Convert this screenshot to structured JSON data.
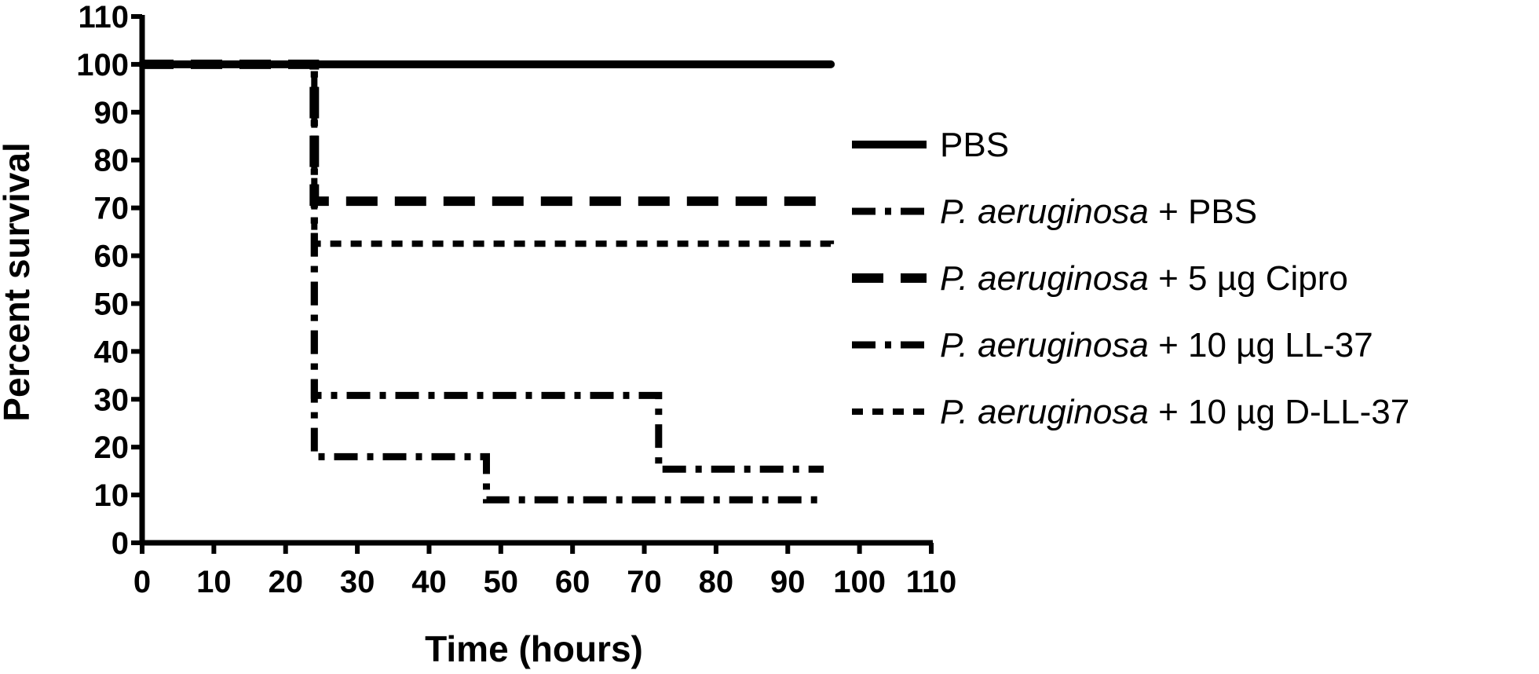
{
  "chart_data": {
    "type": "line",
    "subtype": "kaplan-meier",
    "title": "",
    "xlabel": "Time (hours)",
    "ylabel": "Percent survival",
    "xlim": [
      0,
      110
    ],
    "ylim": [
      0,
      110
    ],
    "xticks": [
      "0",
      "10",
      "20",
      "30",
      "40",
      "50",
      "60",
      "70",
      "80",
      "90",
      "100",
      "110"
    ],
    "yticks": [
      "0",
      "10",
      "20",
      "30",
      "40",
      "50",
      "60",
      "70",
      "80",
      "90",
      "100",
      "110"
    ],
    "grid": false,
    "legend_position": "right",
    "series": [
      {
        "name": "PBS",
        "label_parts": [
          {
            "text": "PBS",
            "italic": false
          }
        ],
        "style": "solid",
        "color": "#000000",
        "points": [
          [
            0,
            100
          ],
          [
            96,
            100
          ]
        ]
      },
      {
        "name": "P. aeruginosa +  PBS",
        "label_parts": [
          {
            "text": "P. aeruginosa",
            "italic": true
          },
          {
            "text": " +  PBS",
            "italic": false
          }
        ],
        "style": "dash-dot",
        "color": "#000000",
        "points": [
          [
            0,
            100
          ],
          [
            24,
            100
          ],
          [
            24,
            18
          ],
          [
            48,
            18
          ],
          [
            48,
            9
          ],
          [
            95,
            9
          ]
        ]
      },
      {
        "name": "P. aeruginosa + 5 µg Cipro",
        "label_parts": [
          {
            "text": "P. aeruginosa",
            "italic": true
          },
          {
            "text": " + 5 µg Cipro",
            "italic": false
          }
        ],
        "style": "long-dash",
        "color": "#000000",
        "points": [
          [
            0,
            100
          ],
          [
            24,
            100
          ],
          [
            24,
            71.4
          ],
          [
            96,
            71.4
          ]
        ]
      },
      {
        "name": "P. aeruginosa + 10 µg LL-37",
        "label_parts": [
          {
            "text": "P. aeruginosa",
            "italic": true
          },
          {
            "text": " + 10 µg LL-37",
            "italic": false
          }
        ],
        "style": "dash-dot",
        "color": "#000000",
        "points": [
          [
            0,
            100
          ],
          [
            24,
            100
          ],
          [
            24,
            30.8
          ],
          [
            72,
            30.8
          ],
          [
            72,
            15.4
          ],
          [
            95,
            15.4
          ]
        ]
      },
      {
        "name": "P. aeruginosa + 10 µg D-LL-37",
        "label_parts": [
          {
            "text": "P. aeruginosa",
            "italic": true
          },
          {
            "text": " + 10 µg D-LL-37",
            "italic": false
          }
        ],
        "style": "short-dash",
        "color": "#000000",
        "points": [
          [
            0,
            100
          ],
          [
            24,
            100
          ],
          [
            24,
            62.5
          ],
          [
            96,
            62.5
          ],
          [
            96,
            61.5
          ]
        ]
      }
    ]
  }
}
